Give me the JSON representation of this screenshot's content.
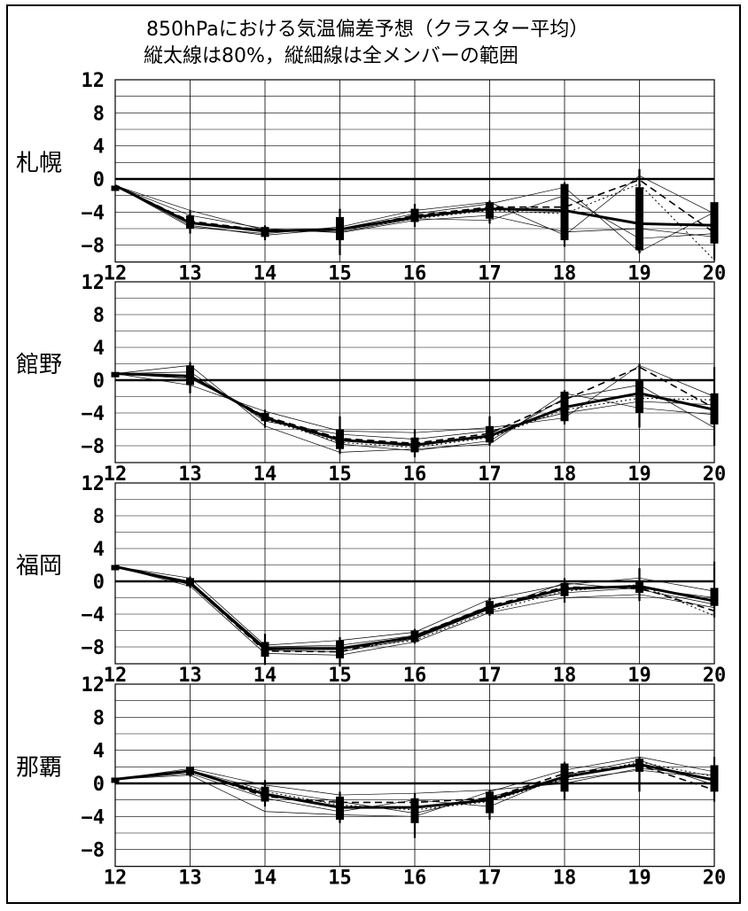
{
  "title_line1": "850hPaにおける気温偏差予想（クラスター平均）",
  "title_line2": "縦太線は80%，縦細線は全メンバーの範囲",
  "chart_data": [
    {
      "type": "line",
      "station": "札幌",
      "x": [
        12,
        13,
        14,
        15,
        16,
        17,
        18,
        19,
        20
      ],
      "ylim": [
        -8,
        12
      ],
      "yticks": [
        12,
        8,
        4,
        0,
        -4,
        -8
      ],
      "mean": [
        -0.8,
        -5.3,
        -6.3,
        -6.1,
        -4.6,
        -3.6,
        -3.8,
        -5.4,
        -5.6
      ],
      "dashed": [
        -0.8,
        -5.1,
        -6.2,
        -6.2,
        -4.4,
        -3.4,
        -3.4,
        -0.1,
        -6.5
      ],
      "dotted": [
        -0.8,
        -5.2,
        -6.4,
        -6.2,
        -4.8,
        -3.8,
        -4.2,
        -0.6,
        -9.8
      ],
      "members": [
        [
          -0.8,
          -5.6,
          -6.8,
          -6.0,
          -4.2,
          -3.0,
          -1.0,
          -8.8,
          -4.0
        ],
        [
          -0.8,
          -4.4,
          -6.0,
          -6.5,
          -5.0,
          -4.4,
          -6.4,
          -6.0,
          -7.0
        ],
        [
          -0.8,
          -5.8,
          -6.6,
          -5.8,
          -3.8,
          -2.8,
          -6.8,
          0.4,
          -4.2
        ],
        [
          -0.8,
          -3.8,
          -6.2,
          -6.4,
          -4.8,
          -5.0,
          -2.0,
          -7.2,
          -6.6
        ]
      ],
      "range_full": [
        [
          -0.8,
          -0.8
        ],
        [
          -6.6,
          -3.8
        ],
        [
          -7.4,
          -5.6
        ],
        [
          -9.2,
          -3.6
        ],
        [
          -5.8,
          -3.0
        ],
        [
          -5.4,
          -2.6
        ],
        [
          -8.2,
          -0.4
        ],
        [
          -9.0,
          1.2
        ],
        [
          -9.8,
          -2.8
        ]
      ],
      "range_80": [
        [
          -0.8,
          -0.8
        ],
        [
          -6.0,
          -4.4
        ],
        [
          -7.0,
          -5.8
        ],
        [
          -7.4,
          -4.6
        ],
        [
          -5.2,
          -3.6
        ],
        [
          -4.8,
          -2.8
        ],
        [
          -7.4,
          -0.6
        ],
        [
          -8.6,
          -1.0
        ],
        [
          -7.8,
          -2.8
        ]
      ]
    },
    {
      "type": "line",
      "station": "館野",
      "x": [
        12,
        13,
        14,
        15,
        16,
        17,
        18,
        19,
        20
      ],
      "ylim": [
        -8,
        12
      ],
      "yticks": [
        12,
        8,
        4,
        0,
        -4,
        -8
      ],
      "mean": [
        0.8,
        0.5,
        -4.6,
        -7.3,
        -7.9,
        -6.8,
        -3.3,
        -1.6,
        -3.6
      ],
      "dashed": [
        0.8,
        0.4,
        -4.4,
        -7.1,
        -7.7,
        -6.5,
        -2.4,
        1.6,
        -3.4
      ],
      "dotted": [
        0.8,
        0.6,
        -4.8,
        -7.6,
        -8.2,
        -7.0,
        -3.6,
        -2.2,
        -2.4
      ],
      "members": [
        [
          0.8,
          1.8,
          -5.6,
          -8.8,
          -8.4,
          -7.8,
          -1.6,
          -3.4,
          -4.2
        ],
        [
          0.8,
          -0.6,
          -3.8,
          -6.2,
          -6.4,
          -5.8,
          -4.6,
          1.8,
          -2.0
        ],
        [
          0.8,
          0.2,
          -4.4,
          -7.8,
          -8.6,
          -7.4,
          -2.2,
          -0.6,
          -5.8
        ],
        [
          0.8,
          1.0,
          -5.0,
          -6.6,
          -7.2,
          -6.2,
          -4.0,
          -2.6,
          -3.0
        ]
      ],
      "range_full": [
        [
          0.6,
          1.0
        ],
        [
          -1.6,
          2.2
        ],
        [
          -5.8,
          -3.6
        ],
        [
          -9.0,
          -4.4
        ],
        [
          -9.4,
          -6.0
        ],
        [
          -8.0,
          -4.4
        ],
        [
          -5.4,
          -1.2
        ],
        [
          -5.8,
          2.0
        ],
        [
          -8.0,
          1.6
        ]
      ],
      "range_80": [
        [
          0.6,
          1.0
        ],
        [
          -0.6,
          1.8
        ],
        [
          -5.0,
          -4.0
        ],
        [
          -8.4,
          -6.0
        ],
        [
          -8.8,
          -7.0
        ],
        [
          -7.6,
          -5.6
        ],
        [
          -5.0,
          -1.4
        ],
        [
          -4.0,
          0.0
        ],
        [
          -5.4,
          -1.6
        ]
      ]
    },
    {
      "type": "line",
      "station": "福岡",
      "x": [
        12,
        13,
        14,
        15,
        16,
        17,
        18,
        19,
        20
      ],
      "ylim": [
        -8,
        12
      ],
      "yticks": [
        12,
        8,
        4,
        0,
        -4,
        -8
      ],
      "mean": [
        1.8,
        -0.2,
        -8.2,
        -8.2,
        -6.8,
        -3.2,
        -0.9,
        -0.6,
        -2.4
      ],
      "dashed": [
        1.8,
        -0.3,
        -8.5,
        -8.6,
        -6.6,
        -3.0,
        -0.7,
        -0.8,
        -3.6
      ],
      "dotted": [
        1.8,
        -0.1,
        -8.3,
        -8.3,
        -7.2,
        -3.6,
        -1.2,
        -0.4,
        -4.2
      ],
      "members": [
        [
          1.8,
          0.4,
          -7.8,
          -7.2,
          -6.2,
          -2.2,
          -0.4,
          0.4,
          -1.2
        ],
        [
          1.8,
          -0.6,
          -8.8,
          -9.0,
          -7.4,
          -3.8,
          -2.0,
          -1.6,
          -3.2
        ],
        [
          1.8,
          0.0,
          -8.0,
          -7.8,
          -6.6,
          -3.0,
          -1.4,
          -0.8,
          -2.0
        ],
        [
          1.8,
          -0.4,
          -8.4,
          -8.6,
          -7.0,
          -3.4,
          -0.2,
          -1.0,
          -2.8
        ]
      ],
      "range_full": [
        [
          1.6,
          2.0
        ],
        [
          -0.8,
          0.6
        ],
        [
          -10.2,
          -6.4
        ],
        [
          -10.4,
          -6.8
        ],
        [
          -7.6,
          -5.8
        ],
        [
          -4.2,
          -2.0
        ],
        [
          -2.6,
          0.4
        ],
        [
          -2.4,
          1.6
        ],
        [
          -4.4,
          2.4
        ]
      ],
      "range_80": [
        [
          1.6,
          2.0
        ],
        [
          -0.6,
          0.4
        ],
        [
          -9.2,
          -7.4
        ],
        [
          -9.4,
          -7.2
        ],
        [
          -7.4,
          -6.0
        ],
        [
          -4.0,
          -2.4
        ],
        [
          -1.8,
          -0.2
        ],
        [
          -1.4,
          0.0
        ],
        [
          -3.0,
          -0.8
        ]
      ]
    },
    {
      "type": "line",
      "station": "那覇",
      "x": [
        12,
        13,
        14,
        15,
        16,
        17,
        18,
        19,
        20
      ],
      "ylim": [
        -8,
        12
      ],
      "yticks": [
        12,
        8,
        4,
        0,
        -4,
        -8
      ],
      "mean": [
        0.5,
        1.5,
        -1.3,
        -2.9,
        -2.9,
        -2.0,
        0.8,
        2.3,
        0.4
      ],
      "dashed": [
        0.5,
        1.6,
        -1.6,
        -2.3,
        -2.3,
        -1.8,
        1.2,
        2.2,
        -0.8
      ],
      "dotted": [
        0.5,
        1.4,
        -1.0,
        -2.6,
        -3.2,
        -2.2,
        0.6,
        2.6,
        0.8
      ],
      "members": [
        [
          0.5,
          1.0,
          -3.4,
          -3.8,
          -4.0,
          -1.0,
          1.6,
          3.2,
          1.4
        ],
        [
          0.5,
          1.8,
          -0.2,
          -1.4,
          -1.2,
          -0.8,
          0.0,
          1.8,
          1.0
        ],
        [
          0.5,
          1.2,
          -1.8,
          -3.4,
          -2.0,
          -2.8,
          1.0,
          2.8,
          -0.2
        ],
        [
          0.5,
          1.6,
          -0.8,
          -2.2,
          -3.6,
          -1.6,
          0.4,
          1.6,
          0.6
        ]
      ],
      "range_full": [
        [
          0.3,
          0.7
        ],
        [
          0.8,
          2.0
        ],
        [
          -2.8,
          0.4
        ],
        [
          -4.8,
          -1.0
        ],
        [
          -6.6,
          -1.2
        ],
        [
          -4.4,
          -0.8
        ],
        [
          -2.0,
          2.6
        ],
        [
          -1.0,
          3.2
        ],
        [
          -2.2,
          3.2
        ]
      ],
      "range_80": [
        [
          0.3,
          0.7
        ],
        [
          1.0,
          2.0
        ],
        [
          -2.2,
          -0.4
        ],
        [
          -4.4,
          -1.6
        ],
        [
          -4.8,
          -1.8
        ],
        [
          -3.6,
          -1.0
        ],
        [
          -1.0,
          2.4
        ],
        [
          1.4,
          3.0
        ],
        [
          -1.0,
          2.2
        ]
      ]
    }
  ]
}
